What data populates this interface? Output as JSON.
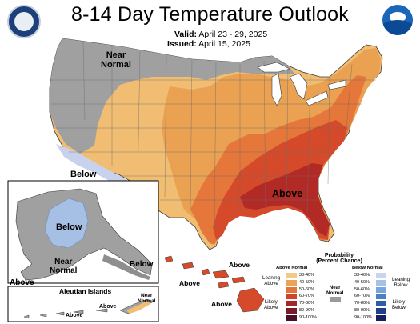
{
  "header": {
    "title": "8-14 Day Temperature Outlook",
    "valid_label": "Valid:",
    "valid_dates": "April 23 - 29, 2025",
    "issued_label": "Issued:",
    "issued_date": "April 15, 2025"
  },
  "logos": {
    "left_icon": "department-of-commerce-seal",
    "right_icon": "noaa-logo",
    "right_text": "NOAA"
  },
  "map_labels": {
    "near_normal_west": "Near\nNormal",
    "below_west": "Below",
    "above_southeast": "Above",
    "alaska_below": "Below",
    "alaska_near_normal": "Near\nNormal",
    "alaska_below_se": "Below",
    "alaska_above": "Above",
    "hawaii_above_1": "Above",
    "hawaii_above_2": "Above",
    "hawaii_above_3": "Above",
    "aleutian_title": "Aleutian Islands",
    "aleutian_near_normal": "Near\nNormal",
    "aleutian_above_1": "Above",
    "aleutian_above_2": "Above"
  },
  "legend": {
    "title": "Probability\n(Percent Chance)",
    "above_header": "Above Normal",
    "below_header": "Below Normal",
    "near_normal": "Near\nNormal",
    "leaning_above": "Leaning\nAbove",
    "likely_above": "Likely\nAbove",
    "leaning_below": "Leaning\nBelow",
    "likely_below": "Likely\nBelow",
    "above_bins": [
      {
        "label": "33-40%",
        "color": "#f3c98b"
      },
      {
        "label": "40-50%",
        "color": "#eaa456"
      },
      {
        "label": "50-60%",
        "color": "#e3743a"
      },
      {
        "label": "60-70%",
        "color": "#d24228"
      },
      {
        "label": "70-80%",
        "color": "#a8262a"
      },
      {
        "label": "80-90%",
        "color": "#7a1a2d"
      },
      {
        "label": "90-100%",
        "color": "#4a0f26"
      }
    ],
    "below_bins": [
      {
        "label": "33-40%",
        "color": "#c9d5ee"
      },
      {
        "label": "40-50%",
        "color": "#a7c0e6"
      },
      {
        "label": "50-60%",
        "color": "#79a6d8"
      },
      {
        "label": "60-70%",
        "color": "#4f7fc3"
      },
      {
        "label": "70-80%",
        "color": "#2f5ea8"
      },
      {
        "label": "80-90%",
        "color": "#213f86"
      },
      {
        "label": "90-100%",
        "color": "#171f5c"
      }
    ],
    "near_normal_color": "#9a9a9a"
  },
  "colors": {
    "above_33_40": "#f0bd72",
    "above_40_50": "#eaa152",
    "above_50_60": "#e5773a",
    "above_60_70": "#d44a2b",
    "above_70_80": "#b22a26",
    "below_33_40": "#c8d2ec",
    "below_40_50": "#a6bfe4",
    "near_normal": "#a0a0a0",
    "water": "#ffffff",
    "border": "#3a3a3a"
  }
}
